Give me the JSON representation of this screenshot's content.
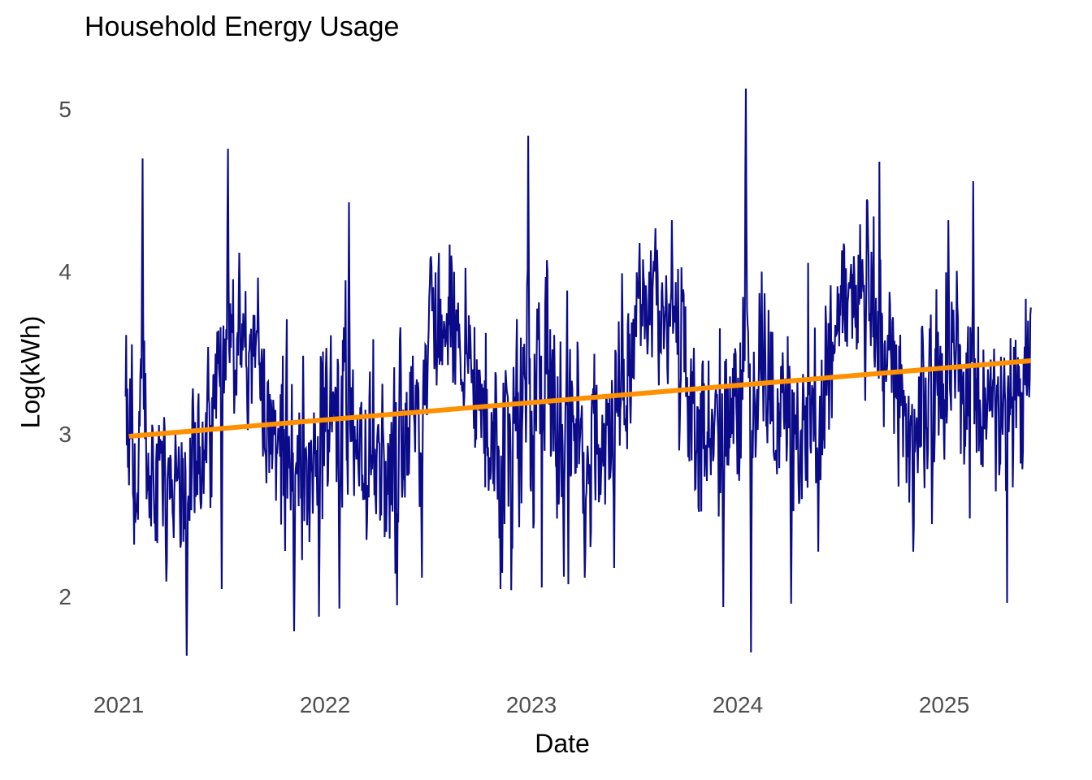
{
  "chart_data": {
    "type": "line",
    "title": "Household Energy Usage",
    "xlabel": "Date",
    "ylabel": "Log(kWh)",
    "x_ticks": [
      2021,
      2022,
      2023,
      2024,
      2025
    ],
    "y_ticks": [
      2,
      3,
      4,
      5
    ],
    "xlim": [
      2020.85,
      2025.72
    ],
    "ylim": [
      1.55,
      5.25
    ],
    "x_range_data": [
      2021.034,
      2025.42
    ],
    "grid": false,
    "legend": null,
    "background": "#ffffff",
    "tick_label_color": "#4f4f4f",
    "text_color": "#000000",
    "series": [
      {
        "name": "daily_log_kwh",
        "color": "#0b0b8a",
        "line_width": 2.1,
        "kind": "noisy_daily",
        "model": {
          "points_per_year": 365,
          "seasonal_monthly_means": [
            3.05,
            2.85,
            2.72,
            2.64,
            2.72,
            3.15,
            3.52,
            3.48,
            3.18,
            2.8,
            2.64,
            2.82
          ],
          "noise_sd_monthly": [
            0.3,
            0.29,
            0.27,
            0.26,
            0.24,
            0.22,
            0.2,
            0.2,
            0.22,
            0.26,
            0.28,
            0.3
          ],
          "trend_per_year": 0.105,
          "ar": 0.3,
          "outlier_prob": 0.012,
          "outlier_magnitude": [
            0.35,
            1.1
          ],
          "value_min": 1.62,
          "value_max": 5.13,
          "noise_seed": 1337,
          "events": [
            [
              2021.115,
              4.7
            ],
            [
              2021.53,
              4.76
            ],
            [
              2021.585,
              4.12
            ],
            [
              2022.1,
              3.95
            ],
            [
              2022.115,
              4.43
            ],
            [
              2022.51,
              4.08
            ],
            [
              2022.985,
              4.84
            ],
            [
              2023.07,
              3.97
            ],
            [
              2023.525,
              4.18
            ],
            [
              2023.6,
              4.27
            ],
            [
              2023.68,
              4.32
            ],
            [
              2024.04,
              5.13
            ],
            [
              2024.13,
              3.87
            ],
            [
              2024.55,
              4.05
            ],
            [
              2025.02,
              4.32
            ],
            [
              2025.14,
              4.56
            ],
            [
              2021.33,
              1.64
            ],
            [
              2021.5,
              2.05
            ],
            [
              2021.85,
              1.79
            ],
            [
              2021.97,
              1.88
            ],
            [
              2022.07,
              1.93
            ],
            [
              2022.35,
              1.95
            ],
            [
              2022.47,
              2.12
            ],
            [
              2022.86,
              2.15
            ],
            [
              2023.18,
              2.08
            ],
            [
              2023.26,
              2.12
            ],
            [
              2023.4,
              2.18
            ],
            [
              2023.93,
              1.94
            ],
            [
              2024.065,
              1.66
            ],
            [
              2024.26,
              1.96
            ],
            [
              2024.39,
              2.28
            ],
            [
              2024.85,
              2.28
            ],
            [
              2024.94,
              2.45
            ]
          ]
        }
      },
      {
        "name": "trend_line",
        "color": "#ff9100",
        "line_width": 6,
        "kind": "straight",
        "points": [
          [
            2021.05,
            2.99
          ],
          [
            2025.42,
            3.455
          ]
        ]
      }
    ]
  }
}
